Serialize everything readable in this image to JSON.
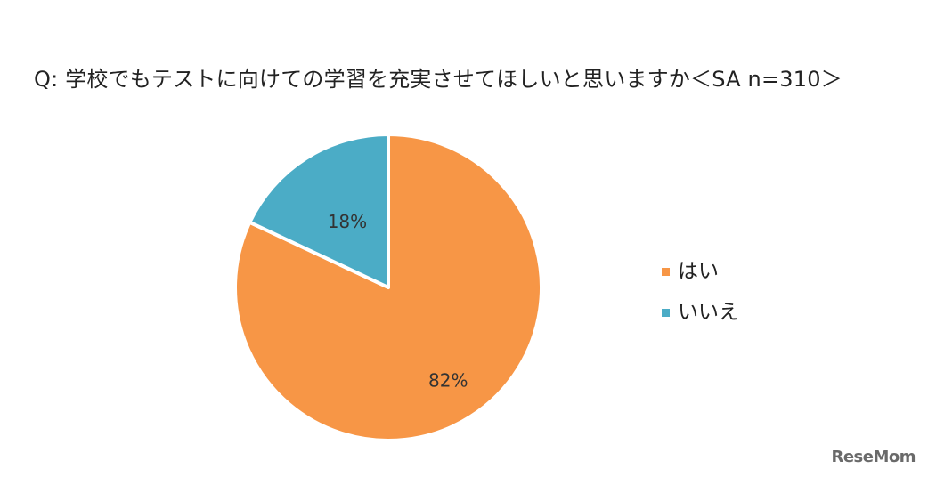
{
  "chart_data": {
    "type": "pie",
    "title": "Q:  学校でもテストに向けての学習を充実させてほしいと思いますか＜SA n=310＞",
    "categories": [
      "はい",
      "いいえ"
    ],
    "values": [
      82,
      18
    ],
    "data_labels": [
      "82%",
      "18%"
    ],
    "colors": [
      "#F79646",
      "#4BACC6"
    ],
    "legend_position": "right",
    "start_angle_deg": 0,
    "direction": "clockwise"
  },
  "watermark": {
    "text": "ReseMom"
  }
}
